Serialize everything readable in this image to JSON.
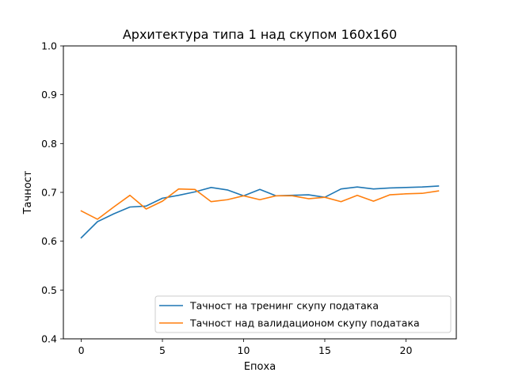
{
  "chart_data": {
    "type": "line",
    "title": "Архитектура типа 1 над скупом 160x160",
    "xlabel": "Епоха",
    "ylabel": "Тачност",
    "xlim": [
      -1.1,
      23.1
    ],
    "ylim": [
      0.4,
      1.0
    ],
    "xticks": [
      "0",
      "5",
      "10",
      "15",
      "20"
    ],
    "xtick_values": [
      0,
      5,
      10,
      15,
      20
    ],
    "yticks": [
      "0.4",
      "0.5",
      "0.6",
      "0.7",
      "0.8",
      "0.9",
      "1.0"
    ],
    "ytick_values": [
      0.4,
      0.5,
      0.6,
      0.7,
      0.8,
      0.9,
      1.0
    ],
    "grid": false,
    "legend_position": "lower-right",
    "x": [
      0,
      1,
      2,
      3,
      4,
      5,
      6,
      7,
      8,
      9,
      10,
      11,
      12,
      13,
      14,
      15,
      16,
      17,
      18,
      19,
      20,
      21,
      22
    ],
    "series": [
      {
        "name": "Тачност на тренинг скупу података",
        "color": "#1f77b4",
        "values": [
          0.607,
          0.64,
          0.656,
          0.67,
          0.672,
          0.688,
          0.694,
          0.701,
          0.71,
          0.705,
          0.693,
          0.706,
          0.693,
          0.694,
          0.695,
          0.69,
          0.707,
          0.711,
          0.707,
          0.709,
          0.71,
          0.711,
          0.713
        ]
      },
      {
        "name": "Тачност над валидационом скупу података",
        "color": "#ff7f0e",
        "values": [
          0.662,
          0.645,
          0.67,
          0.694,
          0.666,
          0.682,
          0.707,
          0.706,
          0.681,
          0.685,
          0.693,
          0.685,
          0.693,
          0.693,
          0.687,
          0.69,
          0.681,
          0.694,
          0.682,
          0.695,
          0.697,
          0.698,
          0.703
        ]
      }
    ]
  }
}
